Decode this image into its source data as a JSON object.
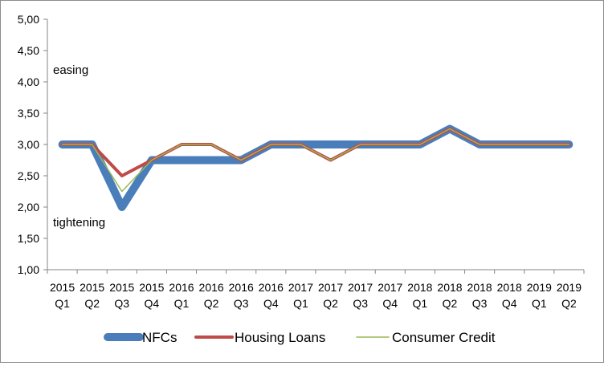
{
  "chart_data": {
    "type": "line",
    "title": "",
    "xlabel": "",
    "ylabel": "",
    "ylim": [
      1.0,
      5.0
    ],
    "yticks": [
      "1,00",
      "1,50",
      "2,00",
      "2,50",
      "3,00",
      "3,50",
      "4,00",
      "4,50",
      "5,00"
    ],
    "grid": false,
    "legend_position": "bottom",
    "categories": [
      {
        "year": "2015",
        "quarter": "Q1"
      },
      {
        "year": "2015",
        "quarter": "Q2"
      },
      {
        "year": "2015",
        "quarter": "Q3"
      },
      {
        "year": "2015",
        "quarter": "Q4"
      },
      {
        "year": "2016",
        "quarter": "Q1"
      },
      {
        "year": "2016",
        "quarter": "Q2"
      },
      {
        "year": "2016",
        "quarter": "Q3"
      },
      {
        "year": "2016",
        "quarter": "Q4"
      },
      {
        "year": "2017",
        "quarter": "Q1"
      },
      {
        "year": "2017",
        "quarter": "Q2"
      },
      {
        "year": "2017",
        "quarter": "Q3"
      },
      {
        "year": "2017",
        "quarter": "Q4"
      },
      {
        "year": "2018",
        "quarter": "Q1"
      },
      {
        "year": "2018",
        "quarter": "Q2"
      },
      {
        "year": "2018",
        "quarter": "Q3"
      },
      {
        "year": "2018",
        "quarter": "Q4"
      },
      {
        "year": "2019",
        "quarter": "Q1"
      },
      {
        "year": "2019",
        "quarter": "Q2"
      }
    ],
    "series": [
      {
        "name": "NFCs",
        "color": "#4a7ebb",
        "values": [
          3.0,
          3.0,
          2.0,
          2.75,
          2.75,
          2.75,
          2.75,
          3.0,
          3.0,
          3.0,
          3.0,
          3.0,
          3.0,
          3.25,
          3.0,
          3.0,
          3.0,
          3.0
        ]
      },
      {
        "name": "Housing Loans",
        "color": "#be4b48",
        "values": [
          3.0,
          3.0,
          2.5,
          2.75,
          3.0,
          3.0,
          2.75,
          3.0,
          3.0,
          2.75,
          3.0,
          3.0,
          3.0,
          3.25,
          3.0,
          3.0,
          3.0,
          3.0
        ]
      },
      {
        "name": "Consumer Credit",
        "color": "#98b954",
        "values": [
          3.0,
          3.0,
          2.25,
          2.75,
          3.0,
          3.0,
          2.75,
          3.0,
          3.0,
          2.75,
          3.0,
          3.0,
          3.0,
          3.25,
          3.0,
          3.0,
          3.0,
          3.0
        ]
      }
    ],
    "annotations": {
      "easing": "easing",
      "tightening": "tightening"
    }
  }
}
